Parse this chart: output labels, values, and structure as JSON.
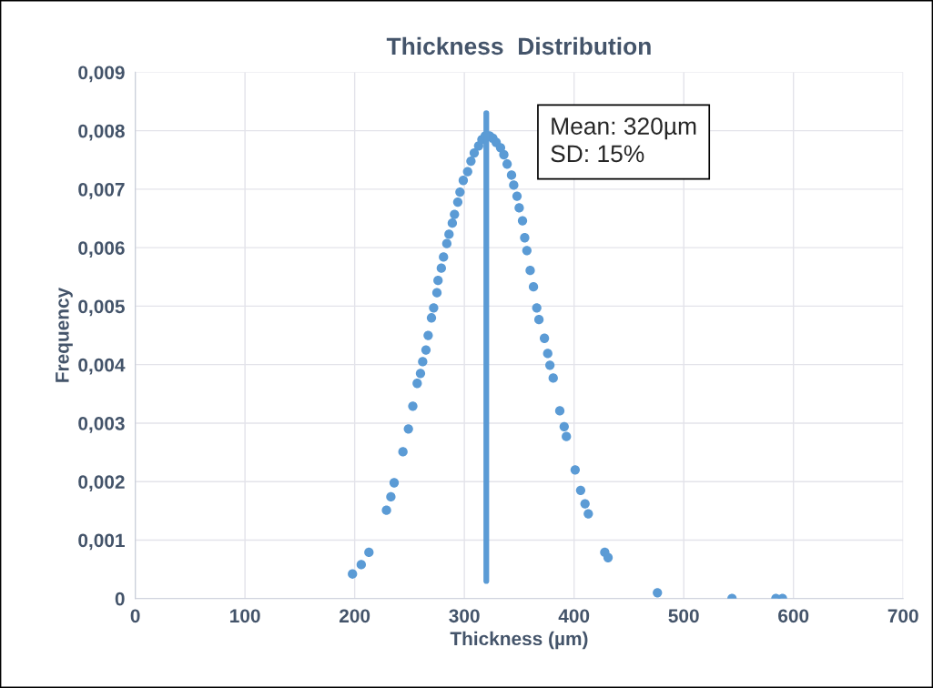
{
  "chart_data": {
    "type": "scatter",
    "title": "Thickness  Distribution",
    "xlabel": "Thickness (µm)",
    "ylabel": "Frequency",
    "xlim": [
      0,
      700
    ],
    "xticks": [
      0,
      100,
      200,
      300,
      400,
      500,
      600,
      700
    ],
    "ylim": [
      0,
      0.009
    ],
    "yticks": [
      {
        "value": 0,
        "label": "0"
      },
      {
        "value": 0.001,
        "label": "0,001"
      },
      {
        "value": 0.002,
        "label": "0,002"
      },
      {
        "value": 0.003,
        "label": "0,003"
      },
      {
        "value": 0.004,
        "label": "0,004"
      },
      {
        "value": 0.005,
        "label": "0,005"
      },
      {
        "value": 0.006,
        "label": "0,006"
      },
      {
        "value": 0.007,
        "label": "0,007"
      },
      {
        "value": 0.008,
        "label": "0,008"
      },
      {
        "value": 0.009,
        "label": "0,009"
      }
    ],
    "grid": true,
    "annotations": [
      "Mean: 320µm\nSD: 15%"
    ],
    "series": [
      {
        "marker": "circle",
        "color": "#5b9bd5",
        "x": [
          198,
          206,
          213,
          229,
          233,
          236,
          244,
          249,
          253,
          257,
          260,
          262,
          265,
          267,
          270,
          272,
          275,
          276,
          279,
          281,
          284,
          286,
          289,
          291,
          294,
          296,
          299,
          303,
          306,
          309,
          313,
          316,
          319,
          323,
          326,
          329,
          333,
          336,
          339,
          343,
          345,
          348,
          350,
          353,
          355,
          357,
          360,
          363,
          366,
          368,
          373,
          376,
          378,
          381,
          387,
          391,
          393,
          401,
          406,
          410,
          413,
          428,
          431,
          476,
          544,
          584,
          590
        ],
        "values": [
          0.00042,
          0.00058,
          0.00079,
          0.00151,
          0.00174,
          0.00198,
          0.00251,
          0.0029,
          0.00329,
          0.00368,
          0.00385,
          0.00405,
          0.00425,
          0.0045,
          0.0048,
          0.00497,
          0.00523,
          0.00544,
          0.00565,
          0.00584,
          0.00607,
          0.00623,
          0.00642,
          0.00657,
          0.00678,
          0.00695,
          0.00715,
          0.0073,
          0.00748,
          0.00762,
          0.00774,
          0.00785,
          0.00791,
          0.00791,
          0.00787,
          0.0078,
          0.00771,
          0.00759,
          0.00743,
          0.00724,
          0.00707,
          0.00688,
          0.00668,
          0.00646,
          0.00617,
          0.00595,
          0.00561,
          0.00533,
          0.00497,
          0.00477,
          0.00445,
          0.00419,
          0.00399,
          0.00377,
          0.00321,
          0.00294,
          0.00277,
          0.0022,
          0.00185,
          0.00162,
          0.00145,
          0.00079,
          0.0007,
          0.0001,
          0,
          0,
          0
        ]
      },
      {
        "type": "line",
        "marker": "none",
        "color": "#5b9bd5",
        "x": [
          320,
          320
        ],
        "values": [
          0.0003,
          0.0083
        ]
      }
    ]
  }
}
